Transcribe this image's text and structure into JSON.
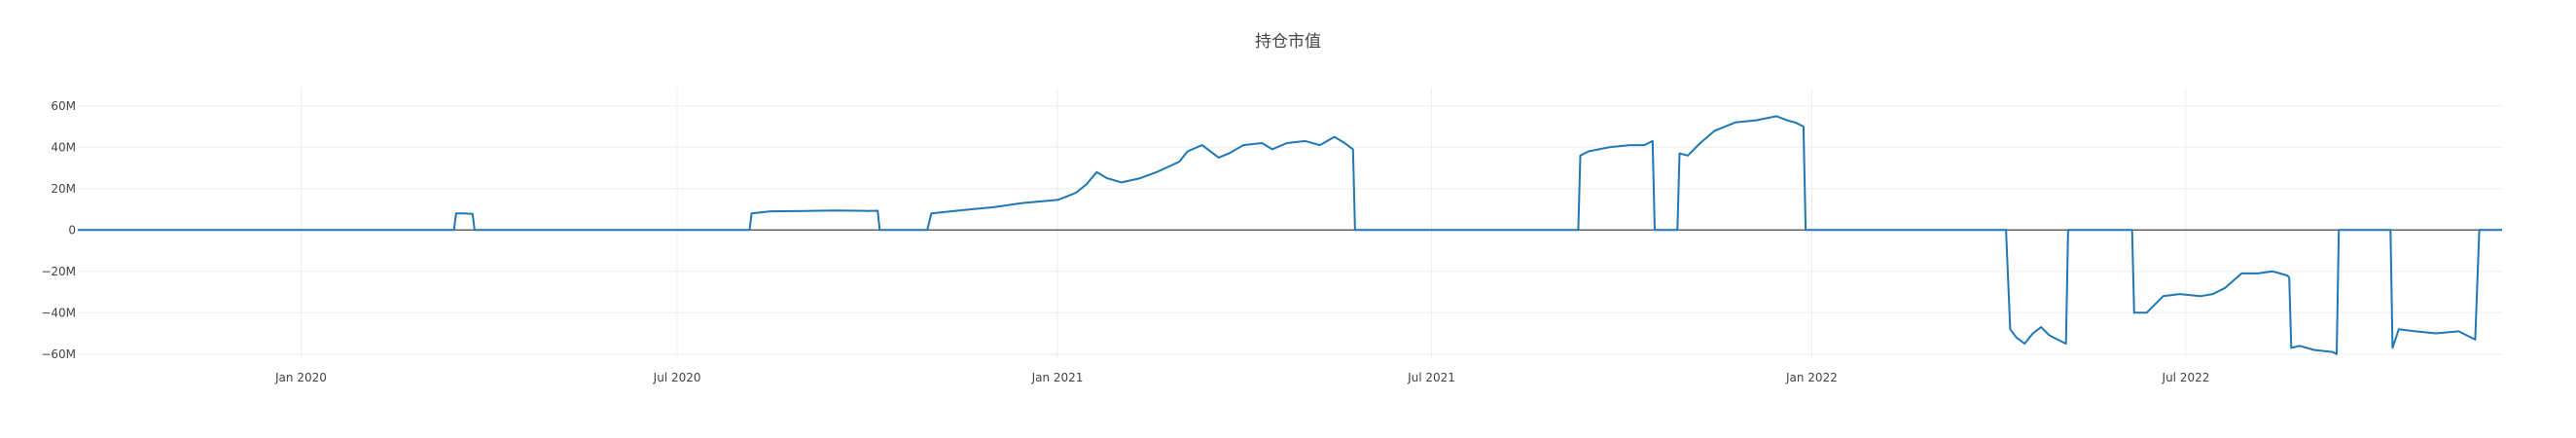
{
  "chart_data": {
    "type": "line",
    "title": "持仓市值",
    "xlabel": "",
    "ylabel": "",
    "x_range": [
      "2019-09-15",
      "2022-12-01"
    ],
    "ylim": [
      -62000000,
      66000000
    ],
    "grid": true,
    "legend": "none",
    "line_color": "#1f77b4",
    "zero_line_color": "#444444",
    "grid_color": "#eeeeee",
    "x_ticks": [
      {
        "value": "2020-01-01",
        "label": "Jan 2020"
      },
      {
        "value": "2020-07-01",
        "label": "Jul 2020"
      },
      {
        "value": "2021-01-01",
        "label": "Jan 2021"
      },
      {
        "value": "2021-07-01",
        "label": "Jul 2021"
      },
      {
        "value": "2022-01-01",
        "label": "Jan 2022"
      },
      {
        "value": "2022-07-01",
        "label": "Jul 2022"
      }
    ],
    "y_ticks": [
      {
        "value": 60000000,
        "label": "60M"
      },
      {
        "value": 40000000,
        "label": "40M"
      },
      {
        "value": 20000000,
        "label": "20M"
      },
      {
        "value": 0,
        "label": "0"
      },
      {
        "value": -20000000,
        "label": "−20M"
      },
      {
        "value": -40000000,
        "label": "−40M"
      },
      {
        "value": -60000000,
        "label": "−60M"
      }
    ],
    "series": [
      {
        "x": [
          "2019-09-15",
          "2020-03-15",
          "2020-03-16",
          "2020-03-20",
          "2020-03-24",
          "2020-03-25",
          "2020-08-05",
          "2020-08-06",
          "2020-08-15",
          "2020-09-01",
          "2020-09-15",
          "2020-10-01",
          "2020-10-06",
          "2020-10-07",
          "2020-10-30",
          "2020-11-01",
          "2020-11-15",
          "2020-12-01",
          "2020-12-15",
          "2021-01-01",
          "2021-01-05",
          "2021-01-10",
          "2021-01-15",
          "2021-01-20",
          "2021-01-25",
          "2021-02-01",
          "2021-02-10",
          "2021-02-18",
          "2021-03-01",
          "2021-03-05",
          "2021-03-12",
          "2021-03-20",
          "2021-03-25",
          "2021-04-01",
          "2021-04-10",
          "2021-04-15",
          "2021-04-22",
          "2021-05-01",
          "2021-05-08",
          "2021-05-15",
          "2021-05-20",
          "2021-05-24",
          "2021-05-25",
          "2021-09-10",
          "2021-09-11",
          "2021-09-15",
          "2021-09-25",
          "2021-10-05",
          "2021-10-12",
          "2021-10-16",
          "2021-10-17",
          "2021-10-28",
          "2021-10-29",
          "2021-11-02",
          "2021-11-08",
          "2021-11-15",
          "2021-11-25",
          "2021-12-05",
          "2021-12-15",
          "2021-12-20",
          "2021-12-24",
          "2021-12-28",
          "2021-12-29",
          "2022-04-05",
          "2022-04-07",
          "2022-04-10",
          "2022-04-14",
          "2022-04-18",
          "2022-04-22",
          "2022-04-26",
          "2022-04-30",
          "2022-05-04",
          "2022-05-05",
          "2022-06-05",
          "2022-06-06",
          "2022-06-12",
          "2022-06-20",
          "2022-06-28",
          "2022-07-08",
          "2022-07-14",
          "2022-07-20",
          "2022-07-28",
          "2022-08-05",
          "2022-08-12",
          "2022-08-19",
          "2022-08-20",
          "2022-08-21",
          "2022-08-25",
          "2022-09-01",
          "2022-09-10",
          "2022-09-12",
          "2022-09-13",
          "2022-10-08",
          "2022-10-09",
          "2022-10-12",
          "2022-10-20",
          "2022-10-30",
          "2022-11-10",
          "2022-11-18",
          "2022-11-20",
          "2022-12-01"
        ],
        "values": [
          0,
          0,
          8000000,
          8000000,
          7800000,
          0,
          0,
          8000000,
          9000000,
          9200000,
          9400000,
          9200000,
          9300000,
          0,
          0,
          8000000,
          9500000,
          11000000,
          13000000,
          14500000,
          16000000,
          18000000,
          22000000,
          28000000,
          25000000,
          23000000,
          25000000,
          28000000,
          33000000,
          38000000,
          41000000,
          35000000,
          37000000,
          41000000,
          42000000,
          39000000,
          42000000,
          43000000,
          41000000,
          45000000,
          42000000,
          39000000,
          0,
          0,
          36000000,
          38000000,
          40000000,
          41000000,
          41000000,
          43000000,
          0,
          0,
          37000000,
          36000000,
          42000000,
          48000000,
          52000000,
          53000000,
          55000000,
          53000000,
          52000000,
          50000000,
          0,
          0,
          -48000000,
          -52000000,
          -55000000,
          -50000000,
          -47000000,
          -51000000,
          -53000000,
          -55000000,
          0,
          0,
          -40000000,
          -40000000,
          -32000000,
          -31000000,
          -32000000,
          -31000000,
          -28000000,
          -21000000,
          -21000000,
          -20000000,
          -22000000,
          -23000000,
          -57000000,
          -56000000,
          -58000000,
          -59000000,
          -60000000,
          0,
          0,
          -57000000,
          -48000000,
          -49000000,
          -50000000,
          -49000000,
          -53000000,
          0,
          0
        ]
      }
    ]
  }
}
